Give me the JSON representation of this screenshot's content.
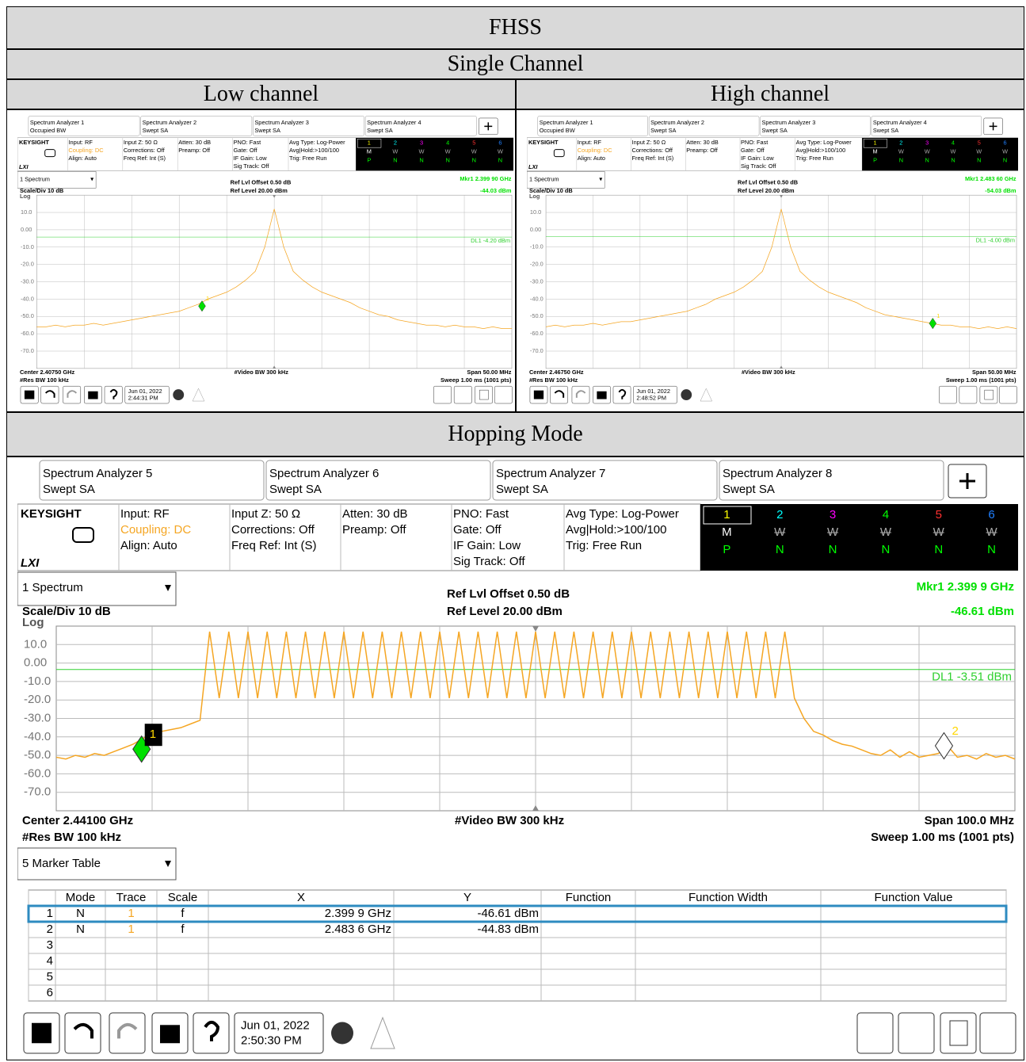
{
  "document": {
    "title": "FHSS",
    "section_single": "Single Channel",
    "col_low": "Low channel",
    "col_high": "High channel",
    "section_hopping": "Hopping Mode"
  },
  "analyzers": [
    {
      "tabs": [
        {
          "title": "Spectrum Analyzer 1",
          "sub": "Occupied BW"
        },
        {
          "title": "Spectrum Analyzer 2",
          "sub": "Swept SA"
        },
        {
          "title": "Spectrum Analyzer 3",
          "sub": "Swept SA"
        },
        {
          "title": "Spectrum Analyzer 4",
          "sub": "Swept SA"
        }
      ],
      "logo": "KEYSIGHT",
      "lxi": "LXI",
      "settings": [
        [
          "Input: RF",
          "Coupling: DC",
          "Align: Auto"
        ],
        [
          "Input Z: 50 Ω",
          "Corrections: Off",
          "Freq Ref: Int (S)"
        ],
        [
          "Atten: 30 dB",
          "Preamp: Off"
        ],
        [
          "PNO: Fast",
          "Gate: Off",
          "IF Gain: Low",
          "Sig Track: Off"
        ],
        [
          "Avg Type: Log-Power",
          "Avg|Hold:>100/100",
          "Trig: Free Run"
        ]
      ],
      "trace_numbers": [
        "1",
        "2",
        "3",
        "4",
        "5",
        "6"
      ],
      "trace_modes": [
        "M",
        "W",
        "W",
        "W",
        "W",
        "W"
      ],
      "trace_detectors": [
        "P",
        "N",
        "N",
        "N",
        "N",
        "N"
      ],
      "trace_colors": [
        "#ffff00",
        "#00ffff",
        "#ff00ff",
        "#00ff00",
        "#ff3030",
        "#2080ff"
      ],
      "view": "1 Spectrum",
      "ref_offset": "Ref Lvl Offset 0.50 dB",
      "ref_level": "Ref Level 20.00 dBm",
      "marker_freq": "Mkr1  2.399 90 GHz",
      "marker_value": "-44.03 dBm",
      "scale_div": "Scale/Div 10 dB",
      "log": "Log",
      "ylim": [
        -80,
        20
      ],
      "yticks": [
        {
          "value": 10,
          "label": "10.0"
        },
        {
          "value": 0,
          "label": "0.00"
        },
        {
          "value": -10,
          "label": "-10.0"
        },
        {
          "value": -20,
          "label": "-20.0"
        },
        {
          "value": -30,
          "label": "-30.0"
        },
        {
          "value": -40,
          "label": "-40.0"
        },
        {
          "value": -50,
          "label": "-50.0"
        },
        {
          "value": -60,
          "label": "-60.0"
        },
        {
          "value": -70,
          "label": "-70.0"
        }
      ],
      "xlim": [
        2382.5,
        2432.5
      ],
      "display_line": {
        "value": -4.2,
        "label": "DL1 -4.20 dBm"
      },
      "trace_color": "#f5a623",
      "trace": [
        -56,
        -56,
        -55,
        -56,
        -55,
        -55,
        -54,
        -55,
        -54,
        -53,
        -52,
        -51,
        -50,
        -49,
        -48,
        -47,
        -45,
        -43,
        -40,
        -38,
        -36,
        -33,
        -29,
        -24,
        -10,
        12,
        -10,
        -24,
        -29,
        -33,
        -36,
        -38,
        -40,
        -42,
        -45,
        -47,
        -49,
        -50,
        -52,
        -53,
        -54,
        -55,
        -55,
        -56,
        -55,
        -56,
        -56,
        -57,
        -56,
        -57,
        -57
      ],
      "markers": [
        {
          "label": "1",
          "x": 2399.9,
          "y": -44.03,
          "color": "#00e000"
        }
      ],
      "center": "Center 2.40750 GHz",
      "video_bw": "#Video BW 300 kHz",
      "span": "Span 50.00 MHz",
      "res_bw": "#Res BW 100 kHz",
      "sweep": "Sweep 1.00 ms (1001 pts)",
      "date": "Jun 01, 2022",
      "time": "2:44:31 PM"
    },
    {
      "tabs": [
        {
          "title": "Spectrum Analyzer 1",
          "sub": "Occupied BW"
        },
        {
          "title": "Spectrum Analyzer 2",
          "sub": "Swept SA"
        },
        {
          "title": "Spectrum Analyzer 3",
          "sub": "Swept SA"
        },
        {
          "title": "Spectrum Analyzer 4",
          "sub": "Swept SA"
        }
      ],
      "logo": "KEYSIGHT",
      "lxi": "LXI",
      "settings": [
        [
          "Input: RF",
          "Coupling: DC",
          "Align: Auto"
        ],
        [
          "Input Z: 50 Ω",
          "Corrections: Off",
          "Freq Ref: Int (S)"
        ],
        [
          "Atten: 30 dB",
          "Preamp: Off"
        ],
        [
          "PNO: Fast",
          "Gate: Off",
          "IF Gain: Low",
          "Sig Track: Off"
        ],
        [
          "Avg Type: Log-Power",
          "Avg|Hold:>100/100",
          "Trig: Free Run"
        ]
      ],
      "trace_numbers": [
        "1",
        "2",
        "3",
        "4",
        "5",
        "6"
      ],
      "trace_modes": [
        "M",
        "W",
        "W",
        "W",
        "W",
        "W"
      ],
      "trace_detectors": [
        "P",
        "N",
        "N",
        "N",
        "N",
        "N"
      ],
      "trace_colors": [
        "#ffff00",
        "#00ffff",
        "#ff00ff",
        "#00ff00",
        "#ff3030",
        "#2080ff"
      ],
      "view": "1 Spectrum",
      "ref_offset": "Ref Lvl Offset 0.50 dB",
      "ref_level": "Ref Level 20.00 dBm",
      "marker_freq": "Mkr1  2.483 60 GHz",
      "marker_value": "-54.03 dBm",
      "scale_div": "Scale/Div 10 dB",
      "log": "Log",
      "ylim": [
        -80,
        20
      ],
      "yticks": [
        {
          "value": 10,
          "label": "10.0"
        },
        {
          "value": 0,
          "label": "0.00"
        },
        {
          "value": -10,
          "label": "-10.0"
        },
        {
          "value": -20,
          "label": "-20.0"
        },
        {
          "value": -30,
          "label": "-30.0"
        },
        {
          "value": -40,
          "label": "-40.0"
        },
        {
          "value": -50,
          "label": "-50.0"
        },
        {
          "value": -60,
          "label": "-60.0"
        },
        {
          "value": -70,
          "label": "-70.0"
        }
      ],
      "xlim": [
        2442.5,
        2492.5
      ],
      "display_line": {
        "value": -4,
        "label": "DL1 -4.00 dBm"
      },
      "trace_color": "#f5a623",
      "trace": [
        -56,
        -55,
        -56,
        -55,
        -55,
        -54,
        -55,
        -54,
        -53,
        -53,
        -52,
        -51,
        -50,
        -49,
        -48,
        -47,
        -45,
        -43,
        -40,
        -38,
        -36,
        -33,
        -29,
        -24,
        -10,
        12,
        -10,
        -24,
        -29,
        -33,
        -36,
        -38,
        -40,
        -42,
        -45,
        -47,
        -49,
        -50,
        -51,
        -52,
        -53,
        -54,
        -55,
        -55,
        -56,
        -56,
        -57,
        -56,
        -57,
        -56,
        -57
      ],
      "markers": [
        {
          "label": "1",
          "x": 2483.6,
          "y": -54.03,
          "color": "#00e000"
        }
      ],
      "center": "Center 2.46750 GHz",
      "video_bw": "#Video BW 300 kHz",
      "span": "Span 50.00 MHz",
      "res_bw": "#Res BW 100 kHz",
      "sweep": "Sweep 1.00 ms (1001 pts)",
      "date": "Jun 01, 2022",
      "time": "2:48:52 PM"
    },
    {
      "tabs": [
        {
          "title": "Spectrum Analyzer 5",
          "sub": "Swept SA"
        },
        {
          "title": "Spectrum Analyzer 6",
          "sub": "Swept SA"
        },
        {
          "title": "Spectrum Analyzer 7",
          "sub": "Swept SA"
        },
        {
          "title": "Spectrum Analyzer 8",
          "sub": "Swept SA"
        }
      ],
      "logo": "KEYSIGHT",
      "lxi": "LXI",
      "settings": [
        [
          "Input: RF",
          "Coupling: DC",
          "Align: Auto"
        ],
        [
          "Input Z: 50 Ω",
          "Corrections: Off",
          "Freq Ref: Int (S)"
        ],
        [
          "Atten: 30 dB",
          "Preamp: Off"
        ],
        [
          "PNO: Fast",
          "Gate: Off",
          "IF Gain: Low",
          "Sig Track: Off"
        ],
        [
          "Avg Type: Log-Power",
          "Avg|Hold:>100/100",
          "Trig: Free Run"
        ]
      ],
      "trace_numbers": [
        "1",
        "2",
        "3",
        "4",
        "5",
        "6"
      ],
      "trace_modes": [
        "M",
        "W",
        "W",
        "W",
        "W",
        "W"
      ],
      "trace_detectors": [
        "P",
        "N",
        "N",
        "N",
        "N",
        "N"
      ],
      "trace_colors": [
        "#ffff00",
        "#00ffff",
        "#ff00ff",
        "#00ff00",
        "#ff3030",
        "#2080ff"
      ],
      "view": "1 Spectrum",
      "ref_offset": "Ref Lvl Offset 0.50 dB",
      "ref_level": "Ref Level 20.00 dBm",
      "marker_freq": "Mkr1  2.399 9 GHz",
      "marker_value": "-46.61 dBm",
      "scale_div": "Scale/Div 10 dB",
      "log": "Log",
      "ylim": [
        -80,
        20
      ],
      "yticks": [
        {
          "value": 10,
          "label": "10.0"
        },
        {
          "value": 0,
          "label": "0.00"
        },
        {
          "value": -10,
          "label": "-10.0"
        },
        {
          "value": -20,
          "label": "-20.0"
        },
        {
          "value": -30,
          "label": "-30.0"
        },
        {
          "value": -40,
          "label": "-40.0"
        },
        {
          "value": -50,
          "label": "-50.0"
        },
        {
          "value": -60,
          "label": "-60.0"
        },
        {
          "value": -70,
          "label": "-70.0"
        }
      ],
      "xlim": [
        2391,
        2491
      ],
      "display_line": {
        "value": -3.51,
        "label": "DL1 -3.51 dBm"
      },
      "trace_color": "#f5a623",
      "trace": [
        -51,
        -52,
        -50,
        -51,
        -49,
        -50,
        -48,
        -46,
        -44,
        -41,
        -38,
        -37,
        -36,
        -35,
        -33,
        -31,
        17,
        -19,
        17,
        -19,
        17,
        -19,
        17,
        -19,
        17,
        -19,
        17,
        -19,
        17,
        -19,
        17,
        -19,
        17,
        -19,
        17,
        -19,
        17,
        -19,
        17,
        -19,
        17,
        -19,
        17,
        -19,
        17,
        -19,
        17,
        -19,
        17,
        -19,
        17,
        -19,
        17,
        -19,
        17,
        -19,
        17,
        -19,
        17,
        -19,
        17,
        -19,
        17,
        -19,
        17,
        -19,
        17,
        -19,
        17,
        -19,
        17,
        -19,
        17,
        -19,
        17,
        -19,
        17,
        -19,
        -30,
        -37,
        -39,
        -42,
        -44,
        -45,
        -47,
        -49,
        -50,
        -47,
        -51,
        -48,
        -51,
        -50,
        -49,
        -45,
        -51,
        -50,
        -52,
        -49,
        -51,
        -50,
        -52
      ],
      "markers": [
        {
          "label": "1",
          "x": 2399.9,
          "y": -46.61,
          "color": "#00e000"
        },
        {
          "label": "2",
          "x": 2483.6,
          "y": -44.83,
          "color": "#ffffff"
        }
      ],
      "center": "Center 2.44100 GHz",
      "video_bw": "#Video BW 300 kHz",
      "span": "Span 100.0 MHz",
      "res_bw": "#Res BW 100 kHz",
      "sweep": "Sweep 1.00 ms (1001 pts)",
      "marker_table": {
        "title": "5 Marker Table",
        "headers": [
          "Mode",
          "Trace",
          "Scale",
          "X",
          "Y",
          "Function",
          "Function Width",
          "Function Value"
        ],
        "rows": [
          [
            "1",
            "N",
            "1",
            "f",
            "2.399 9 GHz",
            "-46.61 dBm"
          ],
          [
            "2",
            "N",
            "1",
            "f",
            "2.483 6 GHz",
            "-44.83 dBm"
          ],
          [
            "3"
          ],
          [
            "4"
          ],
          [
            "5"
          ],
          [
            "6"
          ]
        ]
      },
      "date": "Jun 01, 2022",
      "time": "2:50:30 PM"
    }
  ]
}
